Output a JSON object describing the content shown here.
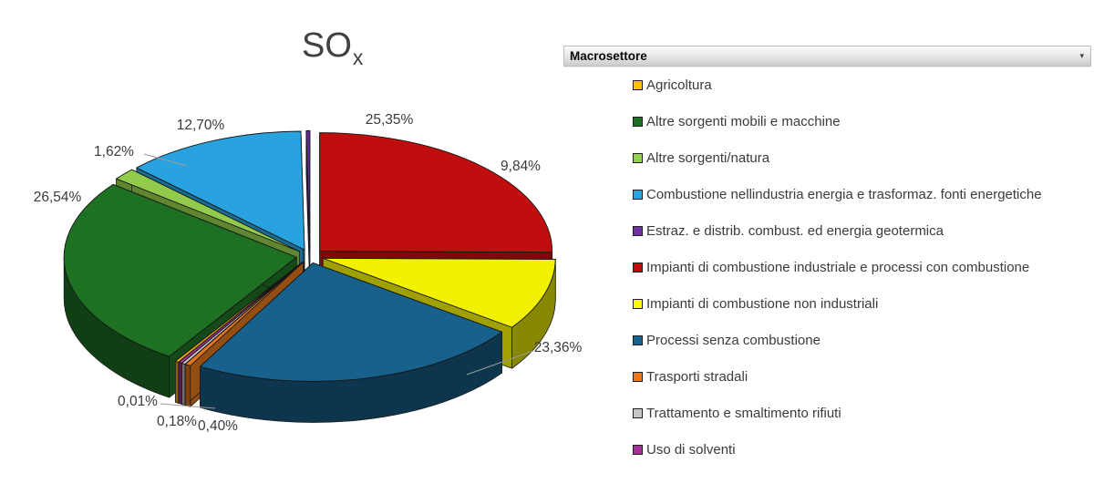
{
  "title": {
    "text": "SO",
    "sub": "x"
  },
  "legend": {
    "header": "Macrosettore",
    "dropdown_icon": "▾",
    "items": [
      {
        "label": "Agricoltura",
        "color": "#FFC000"
      },
      {
        "label": "Altre sorgenti mobili e macchine",
        "color": "#1E7023"
      },
      {
        "label": "Altre sorgenti/natura",
        "color": "#92D050"
      },
      {
        "label": "Combustione nellindustria energia e trasformaz. fonti energetiche",
        "color": "#2AA3DF"
      },
      {
        "label": "Estraz. e distrib. combust. ed energia geotermica",
        "color": "#7030A0"
      },
      {
        "label": "Impianti di combustione industriale e processi con combustione",
        "color": "#C00C0C"
      },
      {
        "label": "Impianti di combustione non industriali",
        "color": "#FCFC00"
      },
      {
        "label": "Processi senza combustione",
        "color": "#17618C"
      },
      {
        "label": "Trasporti stradali",
        "color": "#E8791F"
      },
      {
        "label": "Trattamento e smaltimento rifiuti",
        "color": "#C6C6C6"
      },
      {
        "label": "Uso di solventi",
        "color": "#A43297"
      }
    ]
  },
  "chart_data": {
    "type": "pie",
    "style": "3d-exploded",
    "title": "SOx",
    "unit": "percent",
    "legend_title": "Macrosettore",
    "legend_position": "right",
    "start_angle_deg": 0,
    "direction": "clockwise",
    "draw_order_from_top_clockwise": [
      5,
      6,
      7,
      8,
      9,
      10,
      0,
      1,
      2,
      3,
      4
    ],
    "slices": [
      {
        "name": "Agricoltura",
        "value": 0.0,
        "label": "",
        "color": "#EFB000"
      },
      {
        "name": "Altre sorgenti mobili e macchine",
        "value": 26.54,
        "label": "26,54%",
        "color": "#1E7023"
      },
      {
        "name": "Altre sorgenti/natura",
        "value": 1.62,
        "label": "1,62%",
        "color": "#92CB4C"
      },
      {
        "name": "Combustione nellindustria energia e trasformaz. fonti energetiche",
        "value": 12.7,
        "label": "12,70%",
        "color": "#29A3DF"
      },
      {
        "name": "Estraz. e distrib. combust. ed energia geotermica",
        "value": 0.0,
        "label": "",
        "color": "#5F2C91"
      },
      {
        "name": "Impianti di combustione industriale e processi con combustione",
        "value": 25.35,
        "label": "25,35%",
        "color": "#C00D0D"
      },
      {
        "name": "Impianti di combustione non industriali",
        "value": 9.84,
        "label": "9,84%",
        "color": "#F2F200"
      },
      {
        "name": "Processi senza combustione",
        "value": 23.36,
        "label": "23,36%",
        "color": "#17618C"
      },
      {
        "name": "Trasporti stradali",
        "value": 0.4,
        "label": "0,40%",
        "color": "#E2761B"
      },
      {
        "name": "Trattamento e smaltimento rifiuti",
        "value": 0.18,
        "label": "0,18%",
        "color": "#C8C8C8"
      },
      {
        "name": "Uso di solventi",
        "value": 0.01,
        "label": "0,01%",
        "color": "#A43297"
      }
    ]
  }
}
